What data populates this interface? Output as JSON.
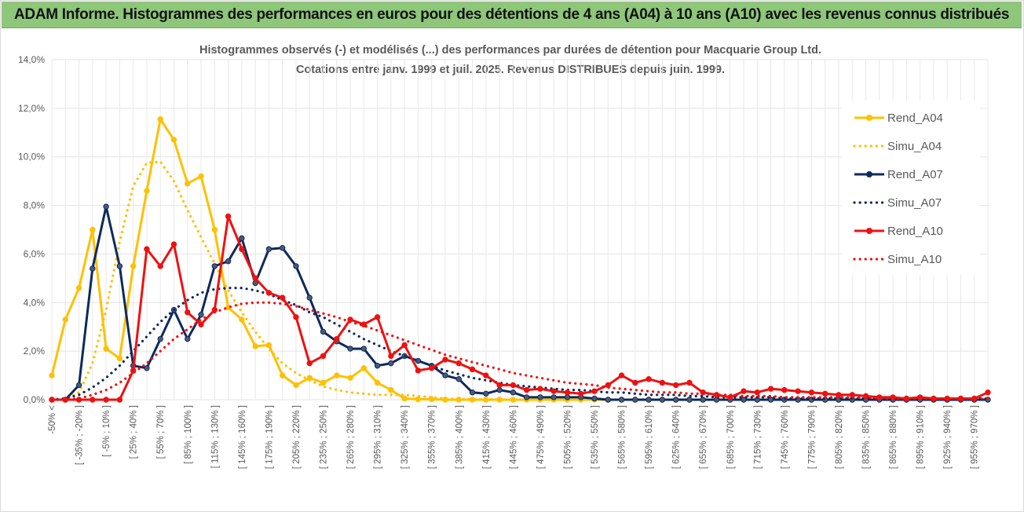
{
  "banner_title": "ADAM Informe. Histogrammes des performances en euros pour des détentions de 4 ans (A04) à 10 ans (A10) avec les revenus connus distribués",
  "chart_data": {
    "type": "line",
    "title": "Histogrammes observés (-) et modélisés (...) des performances par durées de détention pour Macquarie Group Ltd.",
    "subtitle": "Cotations entre janv. 1999 et juil. 2025. Revenus DISTRIBUES depuis juin. 1999.",
    "ylim": [
      0,
      14
    ],
    "yticks": [
      "0,0%",
      "2,0%",
      "4,0%",
      "6,0%",
      "8,0%",
      "10,0%",
      "12,0%",
      "14,0%"
    ],
    "xtick_labels": [
      "-50% <",
      "[ -35% ; -20% ]",
      "[ -5% ; 10% ]",
      "[ 25% ; 40% ]",
      "[ 55% ; 70% ]",
      "[ 85% ; 100% ]",
      "[ 115% ; 130% ]",
      "[ 145% ; 160% ]",
      "[ 175% ; 190% ]",
      "[ 205% ; 220% ]",
      "[ 235% ; 250% ]",
      "[ 265% ; 280% ]",
      "[ 295% ; 310% ]",
      "[ 325% ; 340% ]",
      "[ 355% ; 370% ]",
      "[ 385% ; 400% ]",
      "[ 415% ; 430% ]",
      "[ 445% ; 460% ]",
      "[ 475% ; 490% ]",
      "[ 505% ; 520% ]",
      "[ 535% ; 550% ]",
      "[ 565% ; 580% ]",
      "[ 595% ; 610% ]",
      "[ 625% ; 640% ]",
      "[ 655% ; 670% ]",
      "[ 685% ; 700% ]",
      "[ 715% ; 730% ]",
      "[ 745% ; 760% ]",
      "[ 775% ; 790% ]",
      "[ 805% ; 820% ]",
      "[ 835% ; 850% ]",
      "[ 865% ; 880% ]",
      "[ 895% ; 910% ]",
      "[ 925% ; 940% ]",
      "[ 955% ; 970% ]"
    ],
    "n_bins": 70,
    "grid": true,
    "legend_position": "right",
    "series": [
      {
        "name": "Rend_A04",
        "style": "solid",
        "color": "#ffc000",
        "values": [
          1.0,
          3.3,
          4.6,
          7.0,
          2.1,
          1.7,
          5.5,
          8.6,
          11.55,
          10.7,
          8.9,
          9.2,
          7.0,
          3.8,
          3.3,
          2.2,
          2.25,
          1.0,
          0.6,
          0.9,
          0.7,
          1.0,
          0.9,
          1.3,
          0.7,
          0.4,
          0.05,
          0.02,
          0.02,
          0,
          0,
          0,
          0,
          0,
          0,
          0,
          0,
          0,
          0,
          0,
          0,
          0,
          0,
          0,
          0,
          0,
          0,
          0,
          0,
          0,
          0,
          0,
          0,
          0,
          0,
          0,
          0,
          0,
          0,
          0,
          0,
          0,
          0,
          0,
          0,
          0,
          0,
          0,
          0,
          0
        ]
      },
      {
        "name": "Simu_A04",
        "style": "dotted",
        "color": "#ffc000",
        "values": [
          0,
          0.05,
          0.3,
          1.5,
          3.7,
          6.5,
          8.8,
          9.75,
          9.8,
          9.0,
          7.8,
          6.7,
          5.6,
          4.5,
          3.6,
          2.8,
          2.1,
          1.5,
          1.1,
          0.8,
          0.55,
          0.4,
          0.3,
          0.25,
          0.2,
          0.2,
          0.2,
          0.15,
          0.1,
          0.05,
          0.03,
          0.02,
          0.02,
          0,
          0,
          0,
          0,
          0,
          0,
          0,
          0,
          0,
          0,
          0,
          0,
          0,
          0,
          0,
          0,
          0,
          0,
          0,
          0,
          0,
          0,
          0,
          0,
          0,
          0,
          0,
          0,
          0,
          0,
          0,
          0,
          0,
          0,
          0,
          0,
          0
        ]
      },
      {
        "name": "Rend_A07",
        "style": "solid",
        "color": "#0e2a5c",
        "values": [
          0,
          0,
          0.6,
          5.4,
          7.95,
          5.5,
          1.4,
          1.3,
          2.5,
          3.7,
          2.5,
          3.5,
          5.5,
          5.7,
          6.65,
          4.8,
          6.2,
          6.25,
          5.5,
          4.2,
          2.8,
          2.4,
          2.1,
          2.1,
          1.4,
          1.5,
          1.8,
          1.6,
          1.4,
          1.0,
          0.85,
          0.3,
          0.25,
          0.4,
          0.3,
          0.1,
          0.1,
          0.1,
          0.1,
          0.1,
          0.05,
          0,
          0,
          0,
          0,
          0,
          0,
          0,
          0,
          0,
          0,
          0,
          0,
          0,
          0,
          0,
          0,
          0,
          0,
          0,
          0,
          0,
          0,
          0,
          0,
          0,
          0,
          0,
          0,
          0
        ]
      },
      {
        "name": "Simu_A07",
        "style": "dotted",
        "color": "#0e2a5c",
        "values": [
          0,
          0.05,
          0.2,
          0.5,
          0.9,
          1.4,
          2.0,
          2.6,
          3.2,
          3.7,
          4.1,
          4.4,
          4.55,
          4.6,
          4.6,
          4.5,
          4.35,
          4.1,
          3.9,
          3.6,
          3.4,
          3.1,
          2.8,
          2.5,
          2.25,
          2.0,
          1.8,
          1.6,
          1.4,
          1.2,
          1.05,
          0.9,
          0.8,
          0.7,
          0.6,
          0.55,
          0.5,
          0.45,
          0.4,
          0.4,
          0.35,
          0.3,
          0.3,
          0.25,
          0.2,
          0.2,
          0.2,
          0.15,
          0.15,
          0.1,
          0.1,
          0.1,
          0.1,
          0.1,
          0.05,
          0.05,
          0.05,
          0.05,
          0.05,
          0.05,
          0.05,
          0.05,
          0.05,
          0.05,
          0.05,
          0.05,
          0.05,
          0.05,
          0.05,
          0.05
        ]
      },
      {
        "name": "Rend_A10",
        "style": "solid",
        "color": "#ee1111",
        "values": [
          0,
          0,
          0,
          0,
          0,
          0,
          1.2,
          6.2,
          5.5,
          6.4,
          3.6,
          3.1,
          3.7,
          7.55,
          6.2,
          5.0,
          4.4,
          4.2,
          3.4,
          1.5,
          1.8,
          2.5,
          3.3,
          3.1,
          3.4,
          1.8,
          2.25,
          1.2,
          1.3,
          1.65,
          1.5,
          1.25,
          1.0,
          0.6,
          0.6,
          0.4,
          0.45,
          0.35,
          0.3,
          0.25,
          0.35,
          0.6,
          1.0,
          0.7,
          0.85,
          0.7,
          0.6,
          0.7,
          0.3,
          0.2,
          0.1,
          0.35,
          0.3,
          0.45,
          0.4,
          0.35,
          0.3,
          0.25,
          0.2,
          0.2,
          0.15,
          0.1,
          0.1,
          0.05,
          0.1,
          0.05,
          0.05,
          0.05,
          0.05,
          0.3
        ]
      },
      {
        "name": "Simu_A10",
        "style": "dotted",
        "color": "#ee1111",
        "values": [
          0,
          0,
          0.05,
          0.2,
          0.4,
          0.7,
          1.1,
          1.5,
          2.0,
          2.5,
          2.9,
          3.3,
          3.6,
          3.8,
          3.95,
          4.0,
          4.0,
          3.95,
          3.85,
          3.7,
          3.55,
          3.4,
          3.2,
          3.05,
          2.85,
          2.65,
          2.45,
          2.25,
          2.05,
          1.85,
          1.7,
          1.55,
          1.4,
          1.25,
          1.1,
          1.0,
          0.9,
          0.8,
          0.7,
          0.65,
          0.6,
          0.5,
          0.45,
          0.4,
          0.35,
          0.3,
          0.3,
          0.25,
          0.25,
          0.2,
          0.2,
          0.15,
          0.15,
          0.15,
          0.1,
          0.1,
          0.1,
          0.1,
          0.1,
          0.1,
          0.1,
          0.05,
          0.05,
          0.05,
          0.05,
          0.05,
          0.05,
          0.05,
          0.05,
          0.05
        ]
      }
    ]
  }
}
